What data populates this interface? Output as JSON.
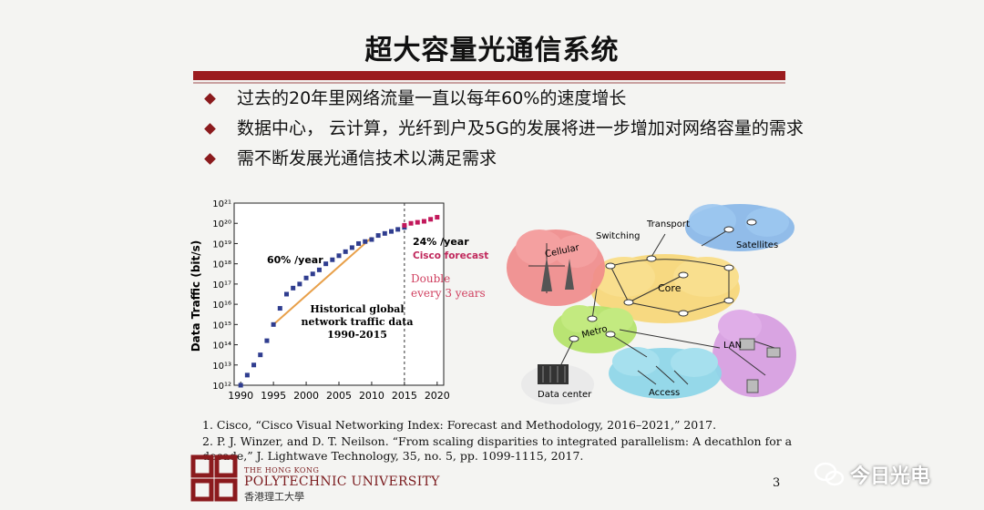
{
  "slide": {
    "title": "超大容量光通信系统",
    "bullets": [
      "过去的20年里网络流量一直以每年60%的速度增长",
      "数据中心， 云计算，光纤到户及5G的发展将进一步增加对网络容量的需求",
      "需不断发展光通信技术以满足需求"
    ],
    "page_number": "3"
  },
  "chart_data": {
    "type": "scatter",
    "ylabel": "Data Traffic (bit/s)",
    "x_ticks": [
      "1990",
      "1995",
      "2000",
      "2005",
      "2010",
      "2015",
      "2020"
    ],
    "y_ticks": [
      "10¹²",
      "10¹³",
      "10¹⁴",
      "10¹⁵",
      "10¹⁶",
      "10¹⁷",
      "10¹⁸",
      "10¹⁹",
      "10²⁰",
      "10²¹"
    ],
    "xlim": [
      1989,
      2021
    ],
    "ylim_log10": [
      12,
      21
    ],
    "historical_log10": [
      [
        1990,
        12.0
      ],
      [
        1991,
        12.5
      ],
      [
        1992,
        13.0
      ],
      [
        1993,
        13.5
      ],
      [
        1994,
        14.2
      ],
      [
        1995,
        15.0
      ],
      [
        1996,
        15.8
      ],
      [
        1997,
        16.5
      ],
      [
        1998,
        16.8
      ],
      [
        1999,
        17.0
      ],
      [
        2000,
        17.3
      ],
      [
        2001,
        17.5
      ],
      [
        2002,
        17.7
      ],
      [
        2003,
        18.0
      ],
      [
        2004,
        18.2
      ],
      [
        2005,
        18.4
      ],
      [
        2006,
        18.6
      ],
      [
        2007,
        18.8
      ],
      [
        2008,
        19.0
      ],
      [
        2009,
        19.1
      ],
      [
        2010,
        19.2
      ],
      [
        2011,
        19.4
      ],
      [
        2012,
        19.5
      ],
      [
        2013,
        19.6
      ],
      [
        2014,
        19.7
      ],
      [
        2015,
        19.8
      ]
    ],
    "forecast_log10": [
      [
        2015,
        19.9
      ],
      [
        2016,
        20.0
      ],
      [
        2017,
        20.05
      ],
      [
        2018,
        20.1
      ],
      [
        2019,
        20.2
      ],
      [
        2020,
        20.3
      ]
    ],
    "trend_line_log10": [
      [
        1995,
        15.0
      ],
      [
        2010,
        19.3
      ]
    ],
    "annotations": {
      "growth": "60% /year",
      "historical": [
        "Historical global",
        "network traffic data",
        "1990-2015"
      ],
      "forecast_rate": "24% /year",
      "forecast_source": "Cisco forecast",
      "double": [
        "Double",
        "every 3 years"
      ]
    },
    "colors": {
      "historical": "#2f3d8f",
      "forecast": "#c2185b",
      "trend": "#e8a04a",
      "forecast_text": "#c0285c",
      "double_text": "#d04060"
    }
  },
  "network": {
    "labels": {
      "transport": "Transport",
      "switching": "Switching",
      "cellular": "Cellular",
      "satellites": "Satellites",
      "core": "Core",
      "metro": "Metro",
      "lan": "LAN",
      "data_center": "Data center",
      "access": "Access"
    },
    "colors": {
      "cellular": "#f08a8a",
      "satellites": "#7fb2e8",
      "core": "#f7d77a",
      "metro": "#b5e36b",
      "lan": "#d69be0",
      "access": "#8fd6e8",
      "datacenter": "#e9e9e9"
    }
  },
  "references": [
    "1. Cisco, “Cisco Visual Networking Index: Forecast and Methodology, 2016–2021,” 2017.",
    "2. P. J. Winzer, and D. T. Neilson. “From scaling disparities to integrated parallelism: A decathlon for a decade,” J. Lightwave Technology, 35, no. 5, pp. 1099-1115, 2017."
  ],
  "university": {
    "line1": "THE HONG KONG",
    "line2": "POLYTECHNIC UNIVERSITY",
    "line3": "香港理工大學"
  },
  "watermark": {
    "text": "今日光电"
  }
}
